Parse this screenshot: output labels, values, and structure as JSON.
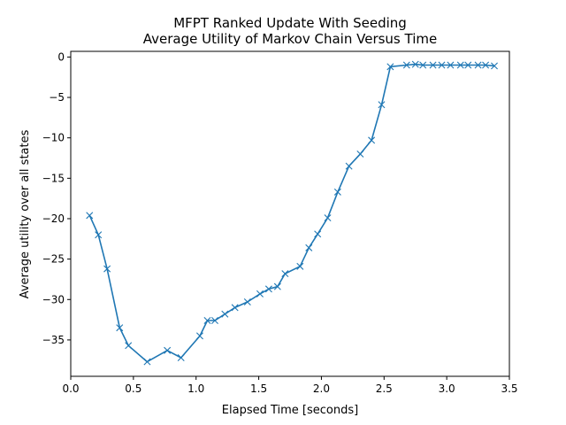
{
  "chart_data": {
    "type": "line",
    "title": "MFPT Ranked Update With Seeding",
    "subtitle": "Average Utility of Markov Chain Versus Time",
    "xlabel": "Elapsed Time [seconds]",
    "ylabel": "Average utility over all states",
    "xlim": [
      0.0,
      3.5
    ],
    "ylim": [
      -39.5,
      0.7
    ],
    "xticks": [
      0.0,
      0.5,
      1.0,
      1.5,
      2.0,
      2.5,
      3.0,
      3.5
    ],
    "xtick_labels": [
      "0.0",
      "0.5",
      "1.0",
      "1.5",
      "2.0",
      "2.5",
      "3.0",
      "3.5"
    ],
    "yticks": [
      0,
      -5,
      -10,
      -15,
      -20,
      -25,
      -30,
      -35
    ],
    "ytick_labels": [
      "0",
      "−5",
      "−10",
      "−15",
      "−20",
      "−25",
      "−30",
      "−35"
    ],
    "grid": false,
    "line_color": "#1f77b4",
    "marker": "x",
    "series": [
      {
        "x": [
          0.15,
          0.22,
          0.29,
          0.39,
          0.46,
          0.61,
          0.77,
          0.88,
          1.03,
          1.09,
          1.15,
          1.23,
          1.31,
          1.41,
          1.51,
          1.58,
          1.65,
          1.71,
          1.83,
          1.9,
          1.97,
          2.05,
          2.13,
          2.22,
          2.31,
          2.4,
          2.48,
          2.55,
          2.68,
          2.75,
          2.81,
          2.89,
          2.96,
          3.03,
          3.11,
          3.17,
          3.25,
          3.31,
          3.38
        ],
        "y": [
          -19.6,
          -22.0,
          -26.2,
          -33.5,
          -35.7,
          -37.7,
          -36.3,
          -37.2,
          -34.5,
          -32.6,
          -32.6,
          -31.8,
          -31.0,
          -30.3,
          -29.3,
          -28.7,
          -28.4,
          -26.8,
          -25.9,
          -23.6,
          -21.9,
          -19.9,
          -16.7,
          -13.5,
          -12.0,
          -10.3,
          -5.9,
          -1.2,
          -1.0,
          -0.9,
          -1.0,
          -1.0,
          -1.0,
          -1.0,
          -1.0,
          -1.0,
          -1.0,
          -1.0,
          -1.1
        ]
      }
    ]
  }
}
